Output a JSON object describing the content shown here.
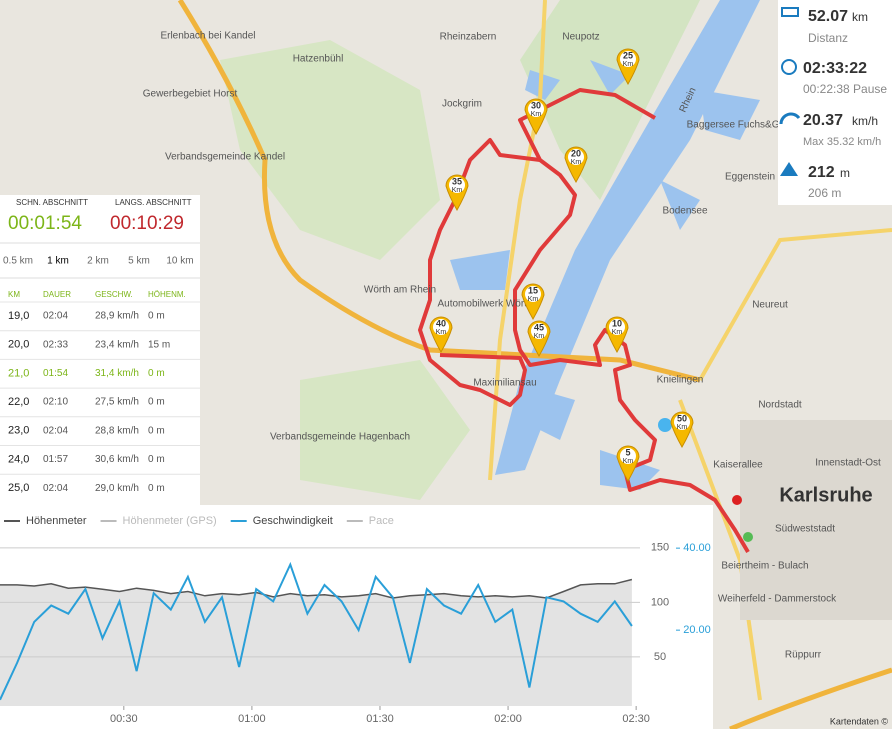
{
  "stats": {
    "distance": "52.07",
    "distance_unit": "km",
    "distance_label": "Distanz",
    "duration": "02:33:22",
    "pause": "00:22:38 Pause",
    "speed": "20.37",
    "speed_unit": "km/h",
    "max_speed": "Max 35.32 km/h",
    "elevation": "212",
    "elevation_unit": "m",
    "elevation_sub": "206 m"
  },
  "splits": {
    "fast_label": "SCHN. ABSCHNITT",
    "fast_value": "00:01:54",
    "slow_label": "LANGS. ABSCHNITT",
    "slow_value": "00:10:29",
    "options": [
      "0.5 km",
      "1 km",
      "2 km",
      "5 km",
      "10 km"
    ],
    "selected_option": 1
  },
  "table": {
    "headers": [
      "KM",
      "DAUER",
      "GESCHW.",
      "HÖHENM."
    ],
    "rows": [
      [
        "19,0",
        "02:04",
        "28,9 km/h",
        "0 m"
      ],
      [
        "20,0",
        "02:33",
        "23,4 km/h",
        "15 m"
      ],
      [
        "21,0",
        "01:54",
        "31,4 km/h",
        "0 m"
      ],
      [
        "22,0",
        "02:10",
        "27,5 km/h",
        "0 m"
      ],
      [
        "23,0",
        "02:04",
        "28,8 km/h",
        "0 m"
      ],
      [
        "24,0",
        "01:57",
        "30,6 km/h",
        "0 m"
      ],
      [
        "25,0",
        "02:04",
        "29,0 km/h",
        "0 m"
      ]
    ],
    "highlight_row": 2
  },
  "map": {
    "labels": [
      "Rheinzabern",
      "Neupotz",
      "Erlenbach bei Kandel",
      "Hatzenbühl",
      "Gewerbegebiet Horst",
      "Jockgrim",
      "Verbandsgemeinde Kandel",
      "Eggenstein",
      "Bodensee",
      "Wörth am Rhein",
      "Automobilwerk Wörth",
      "Neureut",
      "Knielingen",
      "Maximiliansau",
      "Nordstadt",
      "Verbandsgemeinde Hagenbach",
      "Kaiserallee",
      "Innenstadt-Ost",
      "Karlsruhe",
      "Südweststadt",
      "Beiertheim - Bulach",
      "Weiherfeld - Dammerstock",
      "Rüppurr",
      "Rhein",
      "Baggersee Fuchs&Gros",
      "Kartendaten ©"
    ],
    "markers": [
      {
        "num": "25",
        "unit": "Km"
      },
      {
        "num": "30",
        "unit": "Km"
      },
      {
        "num": "20",
        "unit": "Km"
      },
      {
        "num": "35",
        "unit": "Km"
      },
      {
        "num": "15",
        "unit": "Km"
      },
      {
        "num": "40",
        "unit": "Km"
      },
      {
        "num": "45",
        "unit": "Km"
      },
      {
        "num": "10",
        "unit": "Km"
      },
      {
        "num": "50",
        "unit": "Km"
      },
      {
        "num": "5",
        "unit": "Km"
      }
    ]
  },
  "chart": {
    "type": "line",
    "x": [
      1,
      5,
      9,
      13,
      17,
      21,
      25,
      29,
      33,
      37,
      41,
      45,
      49,
      53,
      57,
      61,
      65,
      69,
      73,
      77,
      81,
      85,
      89,
      93,
      97,
      101,
      105,
      109,
      113,
      117,
      121,
      125,
      129,
      133,
      137,
      141,
      145,
      149
    ],
    "xlim": [
      1,
      168
    ],
    "xticks": [
      {
        "value": 30,
        "label": "00:30"
      },
      {
        "value": 60,
        "label": "01:00"
      },
      {
        "value": 90,
        "label": "01:30"
      },
      {
        "value": 120,
        "label": "02:00"
      },
      {
        "value": 150,
        "label": "02:30"
      }
    ],
    "ylim": [
      5,
      170
    ],
    "yticks": [
      50,
      100,
      150
    ],
    "y2lim": [
      1.5,
      45.4
    ],
    "y2ticks": [
      {
        "value": 20,
        "label": "20.00"
      },
      {
        "value": 40,
        "label": "40.00"
      }
    ],
    "series": [
      {
        "name": "Höhenmeter",
        "color": "#555555",
        "values": [
          116,
          116,
          115,
          117,
          113,
          114,
          112,
          110,
          113,
          111,
          108,
          110,
          106,
          108,
          107,
          109,
          105,
          108,
          106,
          107,
          105,
          106,
          108,
          104,
          106,
          107,
          108,
          106,
          105,
          106,
          105,
          106,
          104,
          110,
          116,
          117,
          117,
          121
        ]
      },
      {
        "name": "Höhenmeter (GPS)",
        "color": "#bbbbbb"
      },
      {
        "name": "Geschwindigkeit",
        "color": "#2a9fd8",
        "axis": "y2",
        "values": [
          3,
          12,
          22,
          26,
          24,
          30,
          18,
          27,
          10,
          29,
          25,
          33,
          22,
          28,
          11,
          30,
          27,
          36,
          24,
          31,
          27,
          20,
          33,
          28,
          12,
          30,
          26,
          24,
          31,
          22,
          25,
          6,
          28,
          27,
          24,
          22,
          27,
          21
        ]
      },
      {
        "name": "Pace",
        "color": "#bbbbbb"
      }
    ]
  }
}
